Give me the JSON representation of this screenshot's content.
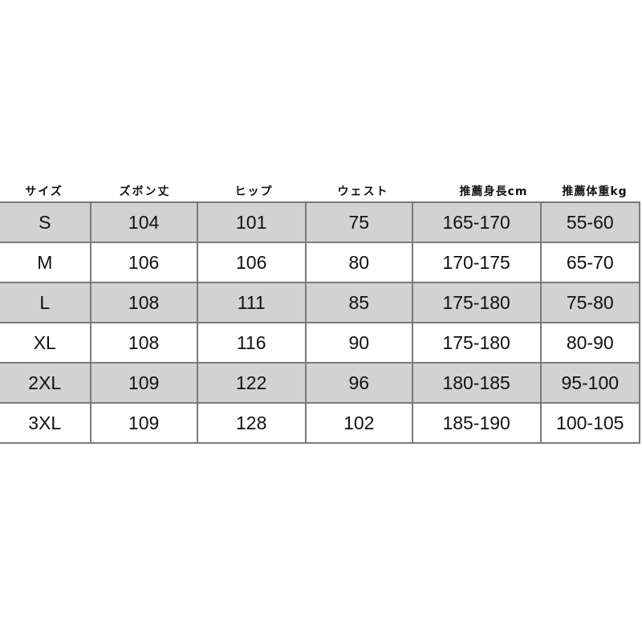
{
  "headers": [
    "サイズ",
    "ズボン丈",
    "ヒップ",
    "ウェスト",
    "推薦身長cm",
    "推薦体重kg"
  ],
  "rows": [
    [
      "S",
      "104",
      "101",
      "75",
      "165-170",
      "55-60"
    ],
    [
      "M",
      "106",
      "106",
      "80",
      "170-175",
      "65-70"
    ],
    [
      "L",
      "108",
      "111",
      "85",
      "175-180",
      "75-80"
    ],
    [
      "XL",
      "108",
      "116",
      "90",
      "175-180",
      "80-90"
    ],
    [
      "2XL",
      "109",
      "122",
      "96",
      "180-185",
      "95-100"
    ],
    [
      "3XL",
      "109",
      "128",
      "102",
      "185-190",
      "100-105"
    ]
  ],
  "colors": {
    "shaded_row": "#d2d2d2",
    "border": "#7a7a7a"
  }
}
